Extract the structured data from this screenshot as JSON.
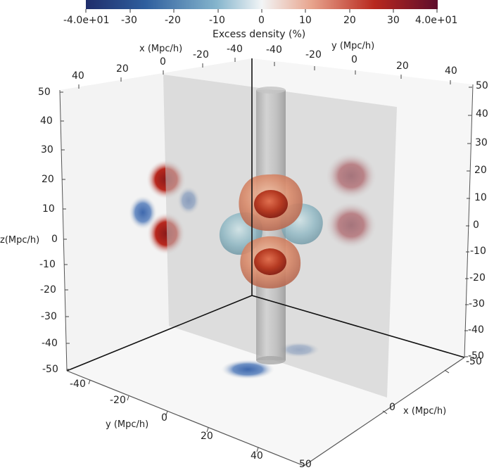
{
  "colorbar": {
    "title": "Excess density (%)",
    "tick_labels": [
      "-4.0e+01",
      "-30",
      "-20",
      "-10",
      "0",
      "10",
      "20",
      "30",
      "4.0e+01"
    ],
    "colors": [
      "#1f2d6b",
      "#2f5f9e",
      "#84b4cc",
      "#f2f5f6",
      "#e8a58e",
      "#b8281e",
      "#5e0d2c"
    ]
  },
  "axes": {
    "x_back": {
      "title": "x (Mpc/h)",
      "ticks": [
        "40",
        "20",
        "0",
        "-20",
        "-40"
      ]
    },
    "y_back": {
      "title": "y (Mpc/h)",
      "ticks": [
        "-40",
        "-20",
        "0",
        "20",
        "40"
      ]
    },
    "z_left": {
      "title": "z(Mpc/h)",
      "ticks": [
        "50",
        "40",
        "30",
        "20",
        "10",
        "0",
        "-10",
        "-20",
        "-30",
        "-40",
        "-50"
      ]
    },
    "z_right": {
      "ticks": [
        "50",
        "40",
        "30",
        "20",
        "10",
        "0",
        "-10",
        "-20",
        "-30",
        "-40",
        "-50"
      ]
    },
    "y_front": {
      "title": "y (Mpc/h)",
      "ticks": [
        "-40",
        "-20",
        "0",
        "20",
        "40"
      ]
    },
    "x_front": {
      "title": "x (Mpc/h)",
      "ticks": [
        "0",
        "50"
      ]
    },
    "corner_label": "-50"
  },
  "colors": {
    "overdense": "#b8281e",
    "underdense": "#3e68ad",
    "isosurface_positive": "#d98a6a",
    "isosurface_negative": "#8fb8c4",
    "panel": "#e3e3e3"
  }
}
